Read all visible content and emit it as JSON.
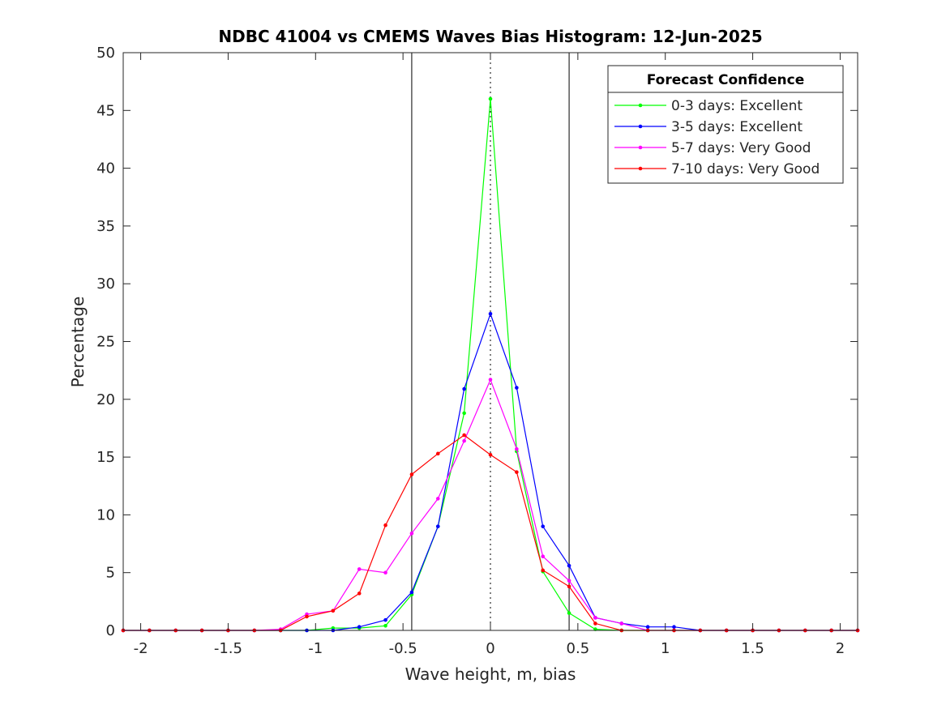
{
  "chart_data": {
    "type": "line",
    "title": "NDBC 41004 vs CMEMS Waves Bias Histogram: 12-Jun-2025",
    "xlabel": "Wave height, m, bias",
    "ylabel": "Percentage",
    "xlim": [
      -2.1,
      2.1
    ],
    "ylim": [
      0,
      50
    ],
    "xticks": [
      -2,
      -1.5,
      -1,
      -0.5,
      0,
      0.5,
      1,
      1.5,
      2
    ],
    "xtick_labels": [
      "-2",
      "-1.5",
      "-1",
      "-0.5",
      "0",
      "0.5",
      "1",
      "1.5",
      "2"
    ],
    "yticks": [
      0,
      5,
      10,
      15,
      20,
      25,
      30,
      35,
      40,
      45,
      50
    ],
    "ytick_labels": [
      "0",
      "5",
      "10",
      "15",
      "20",
      "25",
      "30",
      "35",
      "40",
      "45",
      "50"
    ],
    "grid": false,
    "legend": {
      "title": "Forecast Confidence",
      "placement": "top-right"
    },
    "reference_lines": {
      "solid_x": [
        -0.45,
        0.45
      ],
      "dotted_x": [
        0
      ]
    },
    "x": [
      -2.1,
      -1.95,
      -1.8,
      -1.65,
      -1.5,
      -1.35,
      -1.2,
      -1.05,
      -0.9,
      -0.75,
      -0.6,
      -0.45,
      -0.3,
      -0.15,
      0,
      0.15,
      0.3,
      0.45,
      0.6,
      0.75,
      0.9,
      1.05,
      1.2,
      1.35,
      1.5,
      1.65,
      1.8,
      1.95,
      2.1
    ],
    "series": [
      {
        "name": "0-3 days: Excellent",
        "color": "#00ff00",
        "values": [
          0,
          0,
          0,
          0,
          0,
          0,
          0,
          0,
          0.2,
          0.2,
          0.4,
          3.1,
          9.0,
          18.8,
          46.0,
          15.5,
          5.1,
          1.5,
          0.1,
          0,
          0,
          0,
          0,
          0,
          0,
          0,
          0,
          0,
          0
        ]
      },
      {
        "name": "3-5 days: Excellent",
        "color": "#0000ff",
        "values": [
          0,
          0,
          0,
          0,
          0,
          0,
          0,
          0,
          0,
          0.3,
          0.9,
          3.3,
          9.0,
          20.9,
          27.4,
          21.0,
          9.0,
          5.6,
          1.1,
          0.6,
          0.3,
          0.3,
          0,
          0,
          0,
          0,
          0,
          0,
          0
        ]
      },
      {
        "name": "5-7 days: Very Good",
        "color": "#ff00ff",
        "values": [
          0,
          0,
          0,
          0,
          0,
          0,
          0.1,
          1.4,
          1.7,
          5.3,
          5.0,
          8.4,
          11.4,
          16.4,
          21.7,
          15.7,
          6.4,
          4.3,
          1.1,
          0.6,
          0,
          0,
          0,
          0,
          0,
          0,
          0,
          0,
          0
        ]
      },
      {
        "name": "7-10 days: Very Good",
        "color": "#ff0000",
        "values": [
          0,
          0,
          0,
          0,
          0,
          0,
          0,
          1.2,
          1.7,
          3.2,
          9.1,
          13.5,
          15.3,
          16.9,
          15.2,
          13.7,
          5.2,
          3.8,
          0.6,
          0,
          0,
          0,
          0,
          0,
          0,
          0,
          0,
          0,
          0
        ]
      }
    ]
  }
}
